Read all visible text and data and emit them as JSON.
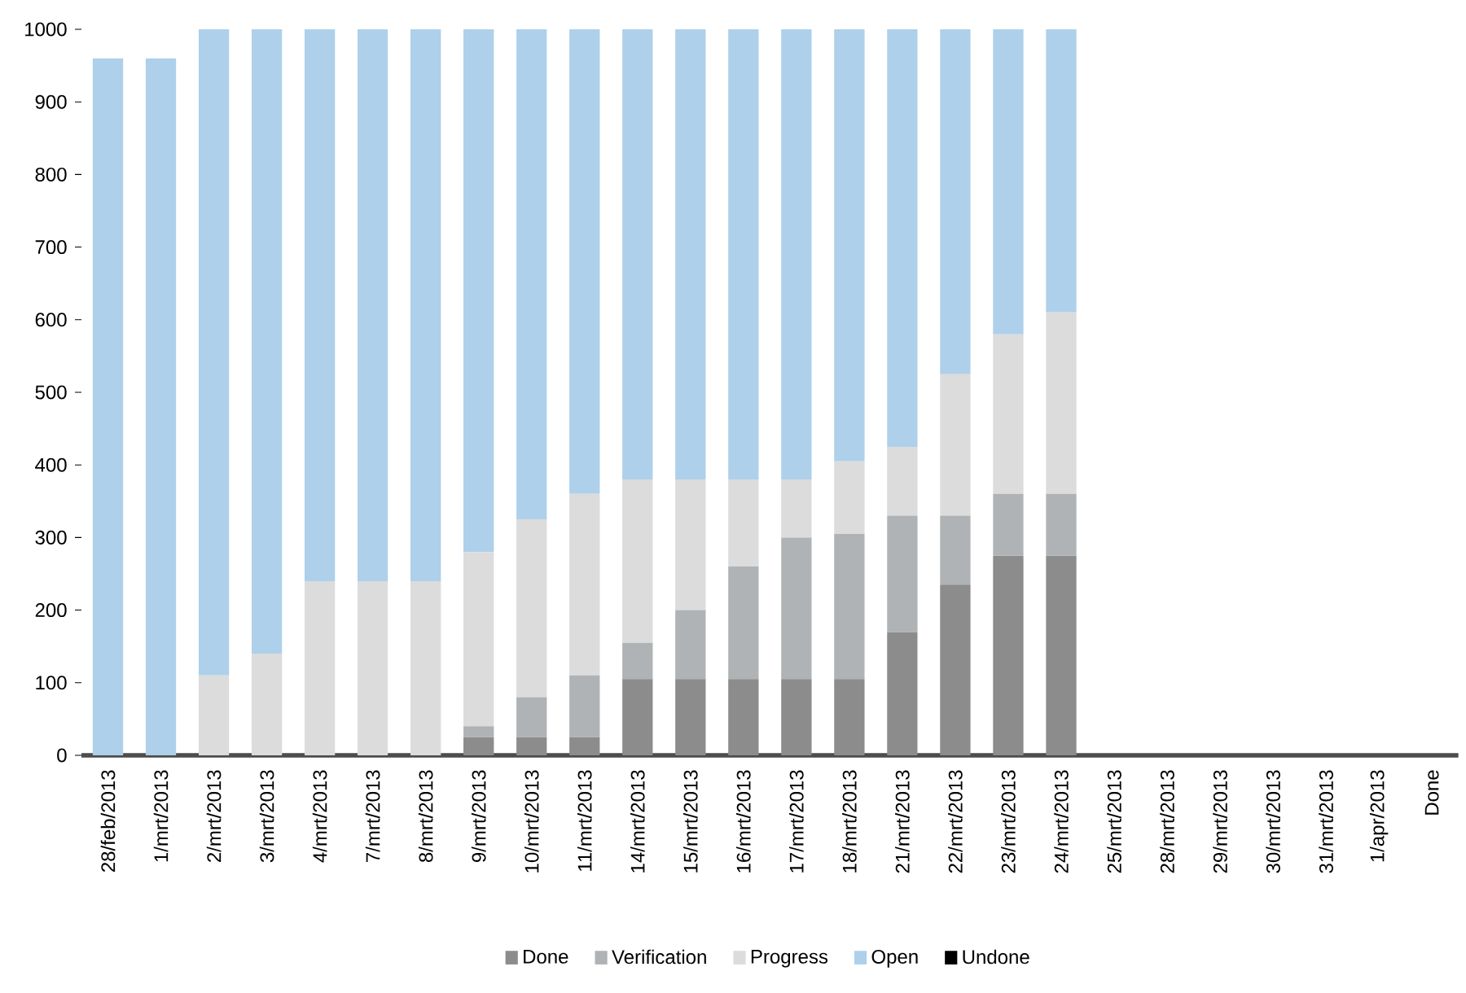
{
  "chart_data": {
    "type": "bar",
    "stacked": true,
    "categories": [
      "28/feb/2013",
      "1/mrt/2013",
      "2/mrt/2013",
      "3/mrt/2013",
      "4/mrt/2013",
      "7/mrt/2013",
      "8/mrt/2013",
      "9/mrt/2013",
      "10/mrt/2013",
      "11/mrt/2013",
      "14/mrt/2013",
      "15/mrt/2013",
      "16/mrt/2013",
      "17/mrt/2013",
      "18/mrt/2013",
      "21/mrt/2013",
      "22/mrt/2013",
      "23/mrt/2013",
      "24/mrt/2013",
      "25/mrt/2013",
      "28/mrt/2013",
      "29/mrt/2013",
      "30/mrt/2013",
      "31/mrt/2013",
      "1/apr/2013",
      "Done"
    ],
    "series": [
      {
        "name": "Done",
        "color": "#8c8c8c",
        "values": [
          null,
          null,
          null,
          null,
          null,
          null,
          null,
          25,
          25,
          25,
          105,
          105,
          105,
          105,
          105,
          170,
          235,
          275,
          275,
          null,
          null,
          null,
          null,
          null,
          null,
          null
        ]
      },
      {
        "name": "Verification",
        "color": "#b0b3b5",
        "values": [
          null,
          null,
          null,
          null,
          null,
          null,
          null,
          15,
          55,
          85,
          50,
          95,
          155,
          195,
          200,
          160,
          95,
          85,
          85,
          null,
          null,
          null,
          null,
          null,
          null,
          null
        ]
      },
      {
        "name": "Progress",
        "color": "#dcdcdc",
        "values": [
          null,
          null,
          110,
          140,
          240,
          240,
          240,
          240,
          245,
          250,
          225,
          180,
          120,
          80,
          100,
          95,
          195,
          220,
          250,
          null,
          null,
          null,
          null,
          null,
          null,
          null
        ]
      },
      {
        "name": "Open",
        "color": "#aed0ea",
        "values": [
          960,
          960,
          890,
          860,
          760,
          760,
          760,
          720,
          675,
          640,
          620,
          620,
          620,
          620,
          595,
          575,
          475,
          420,
          390,
          null,
          null,
          null,
          null,
          null,
          null,
          null
        ]
      },
      {
        "name": "Undone",
        "color": "#000000",
        "values": [
          null,
          null,
          null,
          null,
          null,
          null,
          null,
          null,
          null,
          null,
          null,
          null,
          null,
          null,
          null,
          null,
          null,
          null,
          null,
          null,
          null,
          null,
          null,
          null,
          null,
          null
        ]
      }
    ],
    "ylim": [
      0,
      1000
    ],
    "yticks": [
      0,
      100,
      200,
      300,
      400,
      500,
      600,
      700,
      800,
      900,
      1000
    ],
    "legend": "bottom"
  }
}
